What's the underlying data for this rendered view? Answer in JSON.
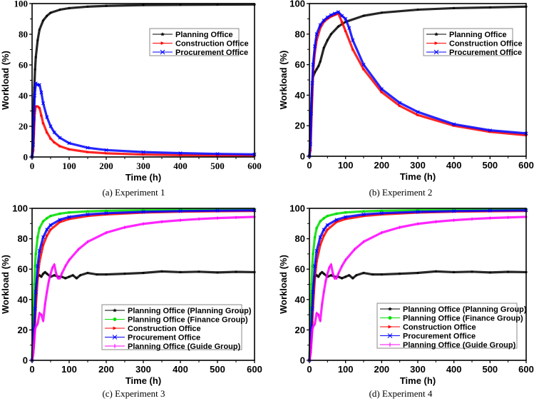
{
  "figure": {
    "captions": [
      "(a) Experiment 1",
      "(b) Experiment 2",
      "(c) Experiment 3",
      "(d) Experiment 4"
    ]
  },
  "chart_data": [
    {
      "type": "line",
      "panel": "a",
      "title": "",
      "caption": "(a) Experiment 1",
      "xlabel": "Time (h)",
      "ylabel": "Workload (%)",
      "xlim": [
        0,
        600
      ],
      "ylim": [
        0,
        100
      ],
      "xticks": [
        0,
        100,
        200,
        300,
        400,
        500,
        600
      ],
      "yticks": [
        0,
        20,
        40,
        60,
        80,
        100
      ],
      "tick_font": "serif",
      "grid": false,
      "legend_position": "top-right",
      "series": [
        {
          "name": "Planning Office",
          "color": "#000000",
          "marker": "star",
          "x": [
            0,
            2,
            4,
            6,
            8,
            10,
            15,
            20,
            30,
            40,
            50,
            75,
            100,
            150,
            200,
            300,
            400,
            500,
            600
          ],
          "y": [
            0,
            14,
            30,
            45,
            57,
            65,
            76,
            83,
            89,
            92,
            94,
            96,
            97,
            98,
            98.5,
            99,
            99.2,
            99.3,
            99.4
          ]
        },
        {
          "name": "Construction Office",
          "color": "#ff0000",
          "marker": "triangle-right",
          "x": [
            0,
            3,
            5,
            7,
            10,
            15,
            20,
            25,
            30,
            40,
            50,
            60,
            75,
            100,
            150,
            200,
            300,
            400,
            500,
            600
          ],
          "y": [
            0,
            4,
            15,
            28,
            33,
            33,
            32,
            27,
            22,
            16,
            12,
            9.5,
            7,
            5,
            3.2,
            2.4,
            1.6,
            1.2,
            1,
            0.8
          ]
        },
        {
          "name": "Procurement Office",
          "color": "#0000ff",
          "marker": "x",
          "x": [
            0,
            3,
            5,
            7,
            10,
            15,
            20,
            25,
            30,
            40,
            50,
            60,
            75,
            100,
            150,
            200,
            300,
            400,
            500,
            600
          ],
          "y": [
            0,
            8,
            25,
            40,
            48,
            47,
            47,
            42,
            35,
            26,
            20,
            16,
            12.5,
            9,
            6,
            4.5,
            3.2,
            2.5,
            2,
            1.7
          ]
        }
      ]
    },
    {
      "type": "line",
      "panel": "b",
      "title": "",
      "caption": "(b) Experiment 2",
      "xlabel": "Time (h)",
      "ylabel": "Workload (%)",
      "xlim": [
        0,
        600
      ],
      "ylim": [
        0,
        100
      ],
      "xticks": [
        0,
        100,
        200,
        300,
        400,
        500,
        600
      ],
      "yticks": [
        0,
        20,
        40,
        60,
        80,
        100
      ],
      "tick_font": "sans",
      "grid": false,
      "legend_position": "top-right",
      "series": [
        {
          "name": "Planning Office",
          "color": "#000000",
          "marker": "star",
          "x": [
            0,
            2,
            4,
            6,
            8,
            10,
            15,
            20,
            25,
            30,
            40,
            50,
            60,
            80,
            100,
            150,
            200,
            300,
            400,
            500,
            600
          ],
          "y": [
            0,
            10,
            25,
            38,
            48,
            52,
            55,
            57,
            59,
            62,
            71,
            76,
            80,
            85,
            88,
            92,
            94,
            96,
            97,
            97.5,
            98
          ]
        },
        {
          "name": "Construction Office",
          "color": "#ff0000",
          "marker": "triangle-right",
          "x": [
            0,
            3,
            5,
            8,
            10,
            15,
            20,
            30,
            40,
            50,
            60,
            70,
            80,
            90,
            100,
            120,
            150,
            200,
            250,
            300,
            400,
            500,
            600
          ],
          "y": [
            0,
            4,
            20,
            40,
            55,
            68,
            76,
            84,
            88,
            90,
            91.5,
            92.5,
            93.5,
            88,
            82,
            70,
            57,
            42,
            33,
            27,
            20,
            16,
            13.8
          ]
        },
        {
          "name": "Procurement Office",
          "color": "#0000ff",
          "marker": "x",
          "x": [
            0,
            3,
            5,
            8,
            10,
            15,
            20,
            30,
            40,
            50,
            60,
            70,
            80,
            90,
            100,
            110,
            120,
            150,
            200,
            250,
            300,
            400,
            500,
            600
          ],
          "y": [
            0,
            8,
            28,
            48,
            60,
            72,
            80,
            86,
            89,
            91,
            92.5,
            93.5,
            94.5,
            92,
            90,
            84,
            76,
            60,
            44,
            35,
            29,
            21,
            17,
            15
          ]
        }
      ]
    },
    {
      "type": "line",
      "panel": "c",
      "title": "",
      "caption": "(c) Experiment 3",
      "xlabel": "Time (h)",
      "ylabel": "Workload (%)",
      "xlim": [
        0,
        600
      ],
      "ylim": [
        0,
        100
      ],
      "xticks": [
        0,
        100,
        200,
        300,
        400,
        500,
        600
      ],
      "yticks": [
        0,
        20,
        40,
        60,
        80,
        100
      ],
      "tick_font": "sans",
      "grid": false,
      "legend_position": "bottom-right",
      "series": [
        {
          "name": "Planning Office (Planning Group)",
          "color": "#000000",
          "marker": "star",
          "x": [
            0,
            3,
            5,
            8,
            10,
            15,
            20,
            25,
            30,
            35,
            40,
            50,
            60,
            70,
            80,
            90,
            100,
            110,
            120,
            130,
            150,
            175,
            200,
            250,
            300,
            350,
            400,
            450,
            500,
            550,
            600
          ],
          "y": [
            0,
            18,
            30,
            42,
            48,
            55,
            56,
            55,
            57,
            58,
            57,
            55,
            56,
            55,
            55,
            54,
            55,
            56,
            54,
            56,
            57.5,
            56.5,
            56.5,
            57,
            57.5,
            58.5,
            58,
            58.3,
            57.8,
            58.2,
            58
          ]
        },
        {
          "name": "Planning Office (Finance Group)",
          "color": "#00dd00",
          "marker": "circle",
          "x": [
            0,
            2,
            4,
            6,
            8,
            10,
            15,
            20,
            30,
            40,
            50,
            75,
            100,
            150,
            200,
            300,
            400,
            500,
            600
          ],
          "y": [
            0,
            18,
            35,
            50,
            62,
            70,
            81,
            87,
            91.5,
            93.5,
            95,
            96.5,
            97.3,
            98,
            98.4,
            98.8,
            99,
            99.2,
            99.3
          ]
        },
        {
          "name": "Construction Office",
          "color": "#ff0000",
          "marker": "triangle-right",
          "x": [
            0,
            3,
            5,
            8,
            10,
            15,
            20,
            30,
            40,
            50,
            75,
            100,
            150,
            200,
            300,
            400,
            500,
            600
          ],
          "y": [
            0,
            5,
            12,
            25,
            35,
            54,
            65,
            76,
            82,
            86,
            91,
            93,
            95,
            96,
            97.2,
            97.8,
            98.1,
            98.3
          ]
        },
        {
          "name": "Procurement Office",
          "color": "#0000ff",
          "marker": "x",
          "x": [
            0,
            3,
            5,
            8,
            10,
            15,
            20,
            30,
            40,
            50,
            75,
            100,
            150,
            200,
            300,
            400,
            500,
            600
          ],
          "y": [
            0,
            10,
            20,
            34,
            45,
            62,
            72,
            81,
            86,
            89,
            92.5,
            94.3,
            96,
            96.8,
            97.7,
            98.2,
            98.5,
            98.7
          ]
        },
        {
          "name": "Planning Office (Guide Group)",
          "color": "#ff00ff",
          "marker": "vertical-bar",
          "x": [
            0,
            3,
            5,
            8,
            10,
            15,
            20,
            25,
            30,
            35,
            40,
            45,
            50,
            55,
            60,
            65,
            70,
            75,
            80,
            90,
            100,
            125,
            150,
            200,
            250,
            300,
            350,
            400,
            450,
            500,
            550,
            600
          ],
          "y": [
            0,
            4,
            10,
            20,
            22,
            24,
            31,
            30,
            26,
            37,
            45,
            52,
            57,
            61,
            63,
            57,
            54,
            54,
            57,
            62,
            66,
            73,
            78,
            84,
            87.5,
            89.8,
            91.2,
            92.2,
            93,
            93.6,
            94,
            94.4
          ]
        }
      ]
    },
    {
      "type": "line",
      "panel": "d",
      "title": "",
      "caption": "(d) Experiment 4",
      "xlabel": "Time (h)",
      "ylabel": "Workload (%)",
      "xlim": [
        0,
        600
      ],
      "ylim": [
        0,
        100
      ],
      "xticks": [
        0,
        100,
        200,
        300,
        400,
        500,
        600
      ],
      "yticks": [
        0,
        20,
        40,
        60,
        80,
        100
      ],
      "tick_font": "sans",
      "grid": false,
      "legend_position": "bottom-right",
      "series": [
        {
          "name": "Planning Office (Planning Group)",
          "color": "#000000",
          "marker": "star",
          "x": [
            0,
            3,
            5,
            8,
            10,
            15,
            20,
            25,
            30,
            35,
            40,
            50,
            60,
            70,
            80,
            90,
            100,
            110,
            120,
            130,
            150,
            175,
            200,
            250,
            300,
            350,
            400,
            450,
            500,
            550,
            600
          ],
          "y": [
            0,
            18,
            30,
            42,
            48,
            55,
            56,
            55,
            57,
            58,
            57,
            55,
            56,
            55,
            55,
            54,
            55,
            56,
            54,
            56,
            57.5,
            56.5,
            56.5,
            57,
            57.5,
            58.5,
            58,
            58.3,
            57.8,
            58.2,
            58
          ]
        },
        {
          "name": "Planning Office (Finance Group)",
          "color": "#00dd00",
          "marker": "circle",
          "x": [
            0,
            2,
            4,
            6,
            8,
            10,
            15,
            20,
            30,
            40,
            50,
            75,
            100,
            150,
            200,
            300,
            400,
            500,
            600
          ],
          "y": [
            0,
            18,
            35,
            50,
            62,
            70,
            81,
            87,
            91.5,
            93.5,
            95,
            96.5,
            97.3,
            98,
            98.4,
            98.8,
            99,
            99.2,
            99.3
          ]
        },
        {
          "name": "Construction Office",
          "color": "#ff0000",
          "marker": "triangle-right",
          "x": [
            0,
            3,
            5,
            8,
            10,
            15,
            20,
            30,
            40,
            50,
            75,
            100,
            150,
            200,
            300,
            400,
            500,
            600
          ],
          "y": [
            0,
            5,
            12,
            25,
            35,
            54,
            65,
            76,
            82,
            86,
            91,
            93,
            95,
            96,
            97.2,
            97.8,
            98.1,
            98.3
          ]
        },
        {
          "name": "Procurement Office",
          "color": "#0000ff",
          "marker": "x",
          "x": [
            0,
            3,
            5,
            8,
            10,
            15,
            20,
            30,
            40,
            50,
            75,
            100,
            150,
            200,
            300,
            400,
            500,
            600
          ],
          "y": [
            0,
            10,
            20,
            34,
            45,
            62,
            72,
            81,
            86,
            89,
            92.5,
            94.3,
            96,
            96.8,
            97.7,
            98.2,
            98.5,
            98.7
          ]
        },
        {
          "name": "Planning Office (Guide Group)",
          "color": "#ff00ff",
          "marker": "vertical-bar",
          "x": [
            0,
            3,
            5,
            8,
            10,
            15,
            20,
            25,
            30,
            35,
            40,
            45,
            50,
            55,
            60,
            65,
            70,
            75,
            80,
            90,
            100,
            125,
            150,
            200,
            250,
            300,
            350,
            400,
            450,
            500,
            550,
            600
          ],
          "y": [
            0,
            4,
            10,
            20,
            22,
            24,
            31,
            30,
            26,
            37,
            45,
            52,
            57,
            61,
            63,
            57,
            54,
            54,
            57,
            62,
            66,
            73,
            78,
            84,
            87.5,
            89.8,
            91.2,
            92.2,
            93,
            93.6,
            94,
            94.4
          ]
        }
      ]
    }
  ]
}
